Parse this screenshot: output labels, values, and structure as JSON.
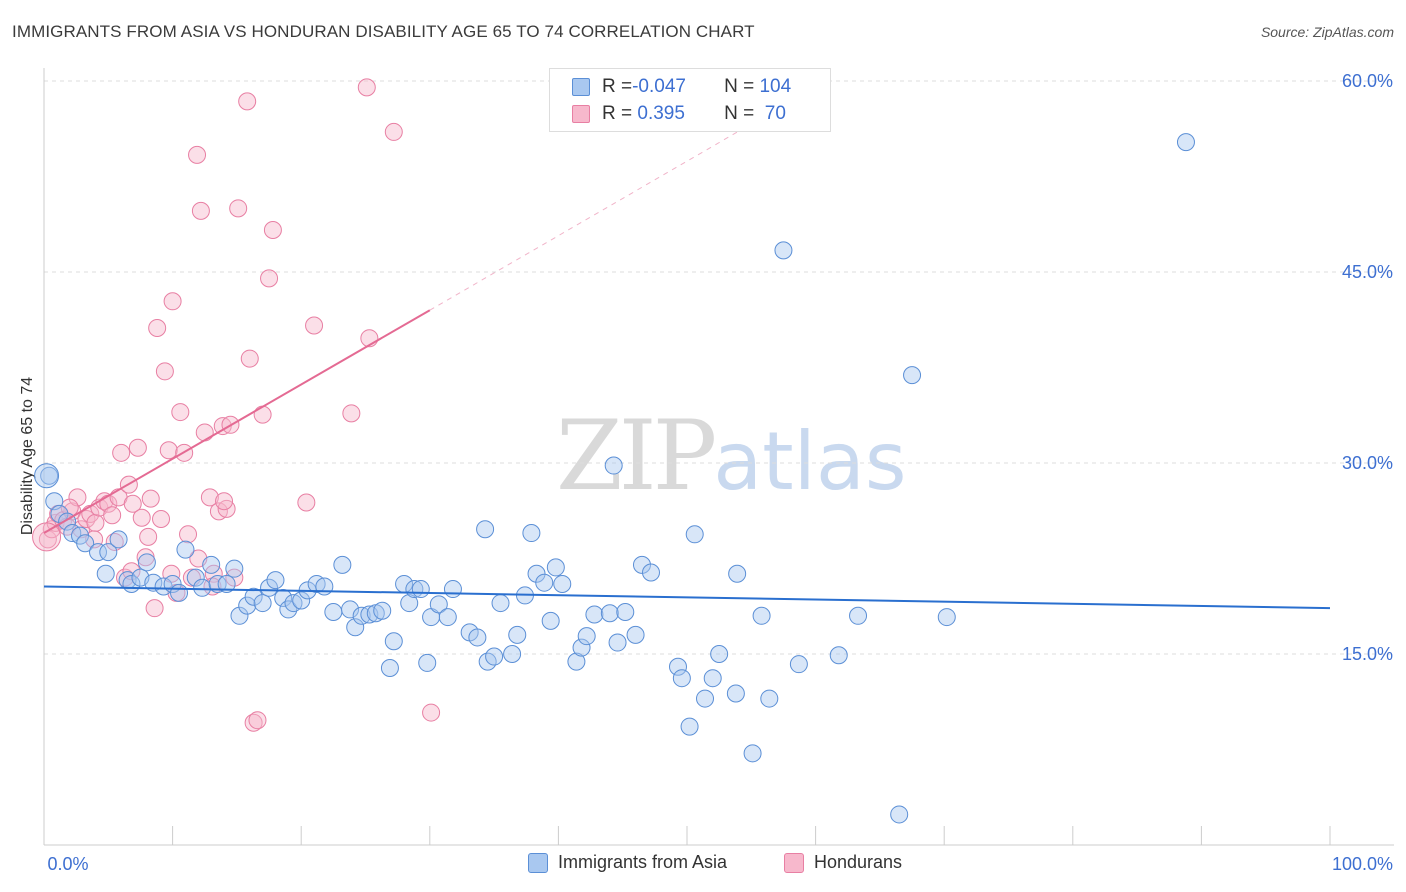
{
  "header": {
    "title": "IMMIGRANTS FROM ASIA VS HONDURAN DISABILITY AGE 65 TO 74 CORRELATION CHART",
    "source": "Source: ZipAtlas.com"
  },
  "watermark": {
    "zip": "ZIP",
    "atlas": "atlas"
  },
  "legend": {
    "rows": [
      {
        "r_label": "R = ",
        "r_value": "-0.047",
        "n_label": "N = ",
        "n_value": "104",
        "color": "#a9c8f0"
      },
      {
        "r_label": "R = ",
        "r_value": " 0.395",
        "n_label": "N = ",
        "n_value": " 70",
        "color": "#f7b8cc"
      }
    ]
  },
  "bottom_legend": {
    "series1": "Immigrants from Asia",
    "series2": "Hondurans"
  },
  "colors": {
    "blue_fill": "#a9c8f0",
    "blue_stroke": "#5b8fd6",
    "blue_line": "#2a6fcf",
    "pink_fill": "#f7b8cc",
    "pink_stroke": "#e87fa3",
    "pink_line": "#e46a93",
    "axis_text": "#3d6fd1",
    "grid": "#dddddd"
  },
  "chart_data": {
    "type": "scatter",
    "title": "IMMIGRANTS FROM ASIA VS HONDURAN DISABILITY AGE 65 TO 74 CORRELATION CHART",
    "xlabel": "",
    "ylabel": "Disability Age 65 to 74",
    "xlim": [
      0,
      100
    ],
    "ylim": [
      0,
      60
    ],
    "x_tick_labels": [
      "0.0%",
      "100.0%"
    ],
    "y_ticks": [
      15,
      30,
      45,
      60
    ],
    "y_tick_labels": [
      "15.0%",
      "30.0%",
      "45.0%",
      "60.0%"
    ],
    "grid": true,
    "legend_position": "top-center",
    "series": [
      {
        "name": "Immigrants from Asia",
        "color": "#a9c8f0",
        "trend": {
          "x": [
            0,
            100
          ],
          "y": [
            20.3,
            18.6
          ]
        },
        "points": [
          [
            0.4,
            29.0
          ],
          [
            0.8,
            27.0
          ],
          [
            1.2,
            26.0
          ],
          [
            1.8,
            25.4
          ],
          [
            2.2,
            24.5
          ],
          [
            2.8,
            24.3
          ],
          [
            3.2,
            23.7
          ],
          [
            4.2,
            23.0
          ],
          [
            5.0,
            23.0
          ],
          [
            5.8,
            24.0
          ],
          [
            4.8,
            21.3
          ],
          [
            6.5,
            20.8
          ],
          [
            6.8,
            20.5
          ],
          [
            7.5,
            21.0
          ],
          [
            8.0,
            22.2
          ],
          [
            8.5,
            20.6
          ],
          [
            9.3,
            20.3
          ],
          [
            10.0,
            20.5
          ],
          [
            10.5,
            19.8
          ],
          [
            11.0,
            23.2
          ],
          [
            11.8,
            21.0
          ],
          [
            12.3,
            20.2
          ],
          [
            13.0,
            22.0
          ],
          [
            13.5,
            20.5
          ],
          [
            14.2,
            20.5
          ],
          [
            14.8,
            21.7
          ],
          [
            15.2,
            18.0
          ],
          [
            15.8,
            18.8
          ],
          [
            16.3,
            19.5
          ],
          [
            17.0,
            19.0
          ],
          [
            17.5,
            20.2
          ],
          [
            18.0,
            20.8
          ],
          [
            18.6,
            19.4
          ],
          [
            19.0,
            18.5
          ],
          [
            19.4,
            19.0
          ],
          [
            20.0,
            19.2
          ],
          [
            20.5,
            20.0
          ],
          [
            21.2,
            20.5
          ],
          [
            21.8,
            20.3
          ],
          [
            22.5,
            18.3
          ],
          [
            23.2,
            22.0
          ],
          [
            23.8,
            18.5
          ],
          [
            24.2,
            17.1
          ],
          [
            24.7,
            18.0
          ],
          [
            25.3,
            18.1
          ],
          [
            25.8,
            18.2
          ],
          [
            26.3,
            18.4
          ],
          [
            26.9,
            13.9
          ],
          [
            27.2,
            16.0
          ],
          [
            28.0,
            20.5
          ],
          [
            28.4,
            19.0
          ],
          [
            28.8,
            20.1
          ],
          [
            29.3,
            20.1
          ],
          [
            29.8,
            14.3
          ],
          [
            30.1,
            17.9
          ],
          [
            30.7,
            18.9
          ],
          [
            31.4,
            17.9
          ],
          [
            31.8,
            20.1
          ],
          [
            33.1,
            16.7
          ],
          [
            33.7,
            16.3
          ],
          [
            34.3,
            24.8
          ],
          [
            34.5,
            14.4
          ],
          [
            35.0,
            14.8
          ],
          [
            35.5,
            19.0
          ],
          [
            36.4,
            15.0
          ],
          [
            36.8,
            16.5
          ],
          [
            37.4,
            19.6
          ],
          [
            37.9,
            24.5
          ],
          [
            38.3,
            21.3
          ],
          [
            38.9,
            20.6
          ],
          [
            39.4,
            17.6
          ],
          [
            39.8,
            21.8
          ],
          [
            40.3,
            20.5
          ],
          [
            41.4,
            14.4
          ],
          [
            41.8,
            15.5
          ],
          [
            42.2,
            16.4
          ],
          [
            42.8,
            18.1
          ],
          [
            44.0,
            18.2
          ],
          [
            44.3,
            29.8
          ],
          [
            44.6,
            15.9
          ],
          [
            45.2,
            18.3
          ],
          [
            46.0,
            16.5
          ],
          [
            46.5,
            22.0
          ],
          [
            47.2,
            21.4
          ],
          [
            49.3,
            14.0
          ],
          [
            49.6,
            13.1
          ],
          [
            50.2,
            9.3
          ],
          [
            50.6,
            24.4
          ],
          [
            51.4,
            11.5
          ],
          [
            52.0,
            13.1
          ],
          [
            52.5,
            15.0
          ],
          [
            53.8,
            11.9
          ],
          [
            53.9,
            21.3
          ],
          [
            56.4,
            11.5
          ],
          [
            55.1,
            7.2
          ],
          [
            55.8,
            18.0
          ],
          [
            57.5,
            46.7
          ],
          [
            58.7,
            14.2
          ],
          [
            61.8,
            14.9
          ],
          [
            63.3,
            18.0
          ],
          [
            66.5,
            2.4
          ],
          [
            67.5,
            36.9
          ],
          [
            70.2,
            17.9
          ],
          [
            88.8,
            55.2
          ]
        ]
      },
      {
        "name": "Hondurans",
        "color": "#f7b8cc",
        "trend": {
          "x": [
            0,
            30
          ],
          "y": [
            24.5,
            42.0
          ]
        },
        "trend_dashed": {
          "x": [
            30,
            57
          ],
          "y": [
            42.0,
            57.8
          ]
        },
        "points": [
          [
            0.3,
            24.0
          ],
          [
            0.6,
            24.8
          ],
          [
            0.9,
            25.3
          ],
          [
            1.1,
            26.0
          ],
          [
            1.5,
            25.5
          ],
          [
            1.8,
            25.0
          ],
          [
            2.2,
            26.2
          ],
          [
            2.6,
            27.3
          ],
          [
            2.9,
            24.8
          ],
          [
            3.3,
            25.6
          ],
          [
            3.6,
            26.0
          ],
          [
            4.0,
            25.3
          ],
          [
            4.3,
            26.5
          ],
          [
            4.7,
            27.0
          ],
          [
            5.0,
            26.8
          ],
          [
            5.3,
            25.9
          ],
          [
            5.5,
            23.8
          ],
          [
            5.8,
            27.3
          ],
          [
            6.0,
            30.8
          ],
          [
            6.3,
            21.0
          ],
          [
            6.6,
            28.3
          ],
          [
            6.9,
            26.8
          ],
          [
            7.3,
            31.2
          ],
          [
            7.6,
            25.7
          ],
          [
            7.9,
            22.6
          ],
          [
            8.1,
            24.2
          ],
          [
            8.3,
            27.2
          ],
          [
            8.6,
            18.6
          ],
          [
            8.8,
            40.6
          ],
          [
            9.1,
            25.6
          ],
          [
            9.4,
            37.2
          ],
          [
            9.7,
            31.0
          ],
          [
            10.0,
            42.7
          ],
          [
            10.3,
            19.8
          ],
          [
            10.6,
            34.0
          ],
          [
            10.9,
            30.8
          ],
          [
            11.2,
            24.4
          ],
          [
            11.5,
            21.0
          ],
          [
            11.9,
            54.2
          ],
          [
            12.2,
            49.8
          ],
          [
            12.5,
            32.4
          ],
          [
            12.9,
            27.3
          ],
          [
            13.2,
            21.3
          ],
          [
            13.6,
            26.2
          ],
          [
            13.9,
            32.9
          ],
          [
            14.2,
            26.4
          ],
          [
            14.5,
            33.0
          ],
          [
            14.8,
            21.0
          ],
          [
            15.1,
            50.0
          ],
          [
            15.8,
            58.4
          ],
          [
            16.0,
            38.2
          ],
          [
            16.3,
            9.6
          ],
          [
            16.6,
            9.8
          ],
          [
            17.0,
            33.8
          ],
          [
            17.5,
            44.5
          ],
          [
            17.8,
            48.3
          ],
          [
            20.4,
            26.9
          ],
          [
            21.0,
            40.8
          ],
          [
            23.9,
            33.9
          ],
          [
            25.1,
            59.5
          ],
          [
            25.3,
            39.8
          ],
          [
            27.2,
            56.0
          ],
          [
            30.1,
            10.4
          ],
          [
            3.9,
            24.0
          ],
          [
            2.0,
            26.5
          ],
          [
            12.0,
            22.5
          ],
          [
            14.0,
            27.0
          ],
          [
            6.8,
            21.5
          ],
          [
            9.9,
            21.3
          ],
          [
            13.1,
            20.3
          ]
        ]
      }
    ]
  }
}
